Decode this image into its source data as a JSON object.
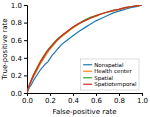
{
  "chart_data": {
    "type": "line",
    "title": "",
    "xlabel": "False-positive rate",
    "ylabel": "True-positive rate",
    "x": [
      0.0,
      0.01,
      0.02,
      0.04,
      0.06,
      0.08,
      0.1,
      0.12,
      0.14,
      0.16,
      0.18,
      0.2,
      0.22,
      0.24,
      0.26,
      0.28,
      0.3,
      0.32,
      0.34,
      0.36,
      0.38,
      0.4,
      0.45,
      0.5,
      0.55,
      0.6,
      0.65,
      0.7,
      0.75,
      0.8,
      0.85,
      0.9,
      0.95,
      1.0
    ],
    "series": [
      {
        "name": "Nonspatial",
        "values": [
          0.0,
          0.03,
          0.06,
          0.1,
          0.15,
          0.19,
          0.23,
          0.27,
          0.3,
          0.33,
          0.35,
          0.39,
          0.43,
          0.46,
          0.49,
          0.52,
          0.55,
          0.57,
          0.59,
          0.61,
          0.63,
          0.65,
          0.7,
          0.74,
          0.78,
          0.82,
          0.85,
          0.88,
          0.91,
          0.93,
          0.95,
          0.97,
          0.98,
          1.0
        ]
      },
      {
        "name": "Health center",
        "values": [
          0.0,
          0.04,
          0.08,
          0.14,
          0.19,
          0.24,
          0.29,
          0.34,
          0.38,
          0.42,
          0.46,
          0.5,
          0.53,
          0.56,
          0.59,
          0.62,
          0.64,
          0.66,
          0.68,
          0.7,
          0.72,
          0.74,
          0.78,
          0.82,
          0.85,
          0.87,
          0.9,
          0.92,
          0.93,
          0.95,
          0.96,
          0.98,
          0.99,
          1.0
        ]
      },
      {
        "name": "Spatial",
        "values": [
          0.0,
          0.05,
          0.09,
          0.16,
          0.22,
          0.27,
          0.32,
          0.37,
          0.41,
          0.45,
          0.49,
          0.52,
          0.55,
          0.58,
          0.61,
          0.63,
          0.65,
          0.67,
          0.69,
          0.71,
          0.73,
          0.75,
          0.79,
          0.83,
          0.86,
          0.88,
          0.9,
          0.92,
          0.94,
          0.95,
          0.97,
          0.98,
          0.99,
          1.0
        ]
      },
      {
        "name": "Spatiotemporal",
        "values": [
          0.0,
          0.05,
          0.09,
          0.15,
          0.21,
          0.26,
          0.31,
          0.36,
          0.4,
          0.44,
          0.48,
          0.51,
          0.54,
          0.57,
          0.6,
          0.62,
          0.65,
          0.67,
          0.69,
          0.71,
          0.73,
          0.75,
          0.79,
          0.82,
          0.85,
          0.88,
          0.9,
          0.92,
          0.94,
          0.95,
          0.97,
          0.98,
          0.99,
          1.0
        ]
      }
    ],
    "xlim": [
      0.0,
      1.0
    ],
    "ylim": [
      0.0,
      1.0
    ],
    "xticks": [
      {
        "value": 0.0,
        "label": "0.0"
      },
      0.2,
      0.4,
      0.6,
      0.8,
      {
        "value": 1.0,
        "label": "1.0"
      }
    ],
    "yticks": [
      {
        "value": 0.0,
        "label": "0.0"
      },
      0.2,
      0.4,
      0.6,
      0.8,
      {
        "value": 1.0,
        "label": "1.0"
      }
    ],
    "grid": false,
    "legend": "lower right"
  }
}
